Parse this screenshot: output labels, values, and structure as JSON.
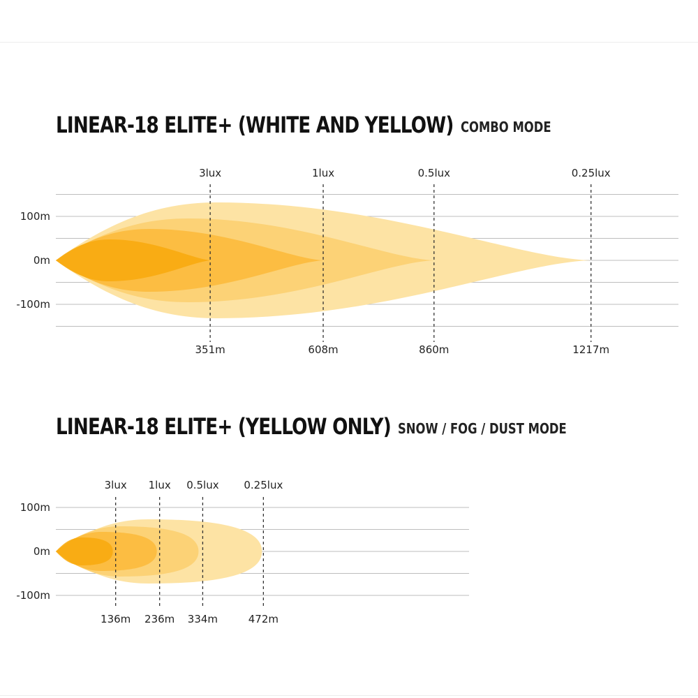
{
  "colors": {
    "beam_light": "#fde3a4",
    "beam_mid": "#fccf6e",
    "beam_strong": "#fbba3a",
    "beam_core": "#f8a90c",
    "grid": "#bdbdbd",
    "dash": "#333333"
  },
  "chart_data": [
    {
      "type": "area",
      "title": "LINEAR-18 ELITE+ (WHITE AND YELLOW)",
      "subtitle": "COMBO MODE",
      "y_ticks": [
        "100m",
        "0m",
        "-100m"
      ],
      "y_tick_values": [
        100,
        0,
        -100
      ],
      "ylim": [
        -150,
        150
      ],
      "xlim": [
        0,
        1530
      ],
      "x_unit": "m",
      "thresholds": [
        {
          "lux": "3lux",
          "distance": 351,
          "distance_label": "351m"
        },
        {
          "lux": "1lux",
          "distance": 608,
          "distance_label": "608m"
        },
        {
          "lux": "0.5lux",
          "distance": 860,
          "distance_label": "860m"
        },
        {
          "lux": "0.25lux",
          "distance": 1217,
          "distance_label": "1217m"
        }
      ]
    },
    {
      "type": "area",
      "title": "LINEAR-18 ELITE+ (YELLOW ONLY)",
      "subtitle": "SNOW / FOG / DUST MODE",
      "y_ticks": [
        "100m",
        "0m",
        "-100m"
      ],
      "y_tick_values": [
        100,
        0,
        -100
      ],
      "ylim": [
        -150,
        150
      ],
      "xlim": [
        0,
        970
      ],
      "x_unit": "m",
      "thresholds": [
        {
          "lux": "3lux",
          "distance": 136,
          "distance_label": "136m"
        },
        {
          "lux": "1lux",
          "distance": 236,
          "distance_label": "236m"
        },
        {
          "lux": "0.5lux",
          "distance": 334,
          "distance_label": "334m"
        },
        {
          "lux": "0.25lux",
          "distance": 472,
          "distance_label": "472m"
        }
      ]
    }
  ]
}
